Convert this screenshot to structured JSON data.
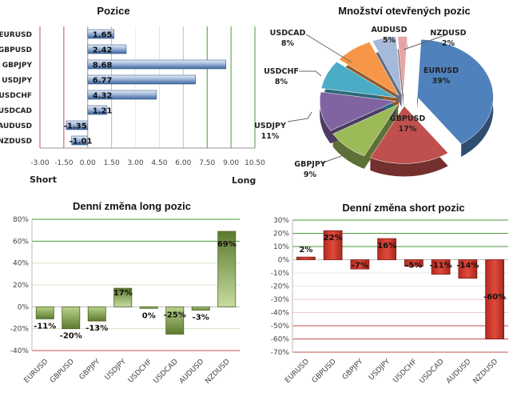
{
  "chart_data": [
    {
      "type": "bar",
      "orientation": "horizontal",
      "title": "Pozice",
      "categories": [
        "EURUSD",
        "GBPUSD",
        "GBPJPY",
        "USDJPY",
        "USDCHF",
        "USDCAD",
        "AUDUSD",
        "NZDUSD"
      ],
      "values": [
        1.65,
        2.42,
        8.68,
        6.77,
        4.32,
        1.21,
        -1.35,
        -1.01
      ],
      "value_labels": [
        "1.65",
        "2.42",
        "8.68",
        "6.77",
        "4.32",
        "1.21",
        "-1.35",
        "-1.01"
      ],
      "xlim": [
        -3.0,
        10.5
      ],
      "xticks": [
        "-3.00",
        "-1.50",
        "0.00",
        "1.50",
        "3.00",
        "4.50",
        "6.00",
        "7.50",
        "9.00",
        "10.50"
      ],
      "xlabel_left": "Short",
      "xlabel_right": "Long",
      "grid": true,
      "colors": {
        "bar": "#4f7bb5",
        "neg_grid": "#c0504d",
        "pos_grid": "#4a9a3a"
      }
    },
    {
      "type": "pie",
      "title": "Množství otevřených pozic",
      "labels": [
        "EURUSD",
        "GBPUSD",
        "GBPJPY",
        "USDJPY",
        "USDCHF",
        "USDCAD",
        "AUDUSD",
        "NZDUSD"
      ],
      "values": [
        39,
        17,
        9,
        11,
        8,
        8,
        5,
        2
      ],
      "value_labels": [
        "39%",
        "17%",
        "9%",
        "11%",
        "8%",
        "8%",
        "5%",
        "2%"
      ],
      "colors": [
        "#4f81bd",
        "#c0504d",
        "#9bbb59",
        "#8064a2",
        "#4bacc6",
        "#f79646",
        "#a5b9da",
        "#e6a5a4"
      ]
    },
    {
      "type": "bar",
      "title": "Denní změna long pozic",
      "categories": [
        "EURUSD",
        "GBPUSD",
        "GBPJPY",
        "USDJPY",
        "USDCHF",
        "USDCAD",
        "AUDUSD",
        "NZDUSD"
      ],
      "values": [
        -11,
        -20,
        -13,
        17,
        0,
        -25,
        -3,
        69
      ],
      "value_labels": [
        "-11%",
        "-20%",
        "-13%",
        "17%",
        "0%",
        "-25%",
        "-3%",
        "69%"
      ],
      "ylim": [
        -40,
        80
      ],
      "yticks": [
        "80%",
        "60%",
        "40%",
        "20%",
        "0%",
        "-20%",
        "-40%"
      ],
      "grid": true,
      "colors": {
        "bar": "#76933c"
      }
    },
    {
      "type": "bar",
      "title": "Denní změna short pozic",
      "categories": [
        "EURUSD",
        "GBPUSD",
        "GBPJPY",
        "USDJPY",
        "USDCHF",
        "USDCAD",
        "AUDUSD",
        "NZDUSD"
      ],
      "values": [
        2,
        22,
        -7,
        16,
        -5,
        -11,
        -14,
        -60
      ],
      "value_labels": [
        "2%",
        "22%",
        "-7%",
        "16%",
        "-5%",
        "-11%",
        "-14%",
        "-60%"
      ],
      "ylim": [
        -70,
        30
      ],
      "yticks": [
        "30%",
        "20%",
        "10%",
        "0%",
        "-10%",
        "-20%",
        "-30%",
        "-40%",
        "-50%",
        "-60%",
        "-70%"
      ],
      "grid": true,
      "colors": {
        "bar": "#c0392b"
      }
    }
  ]
}
